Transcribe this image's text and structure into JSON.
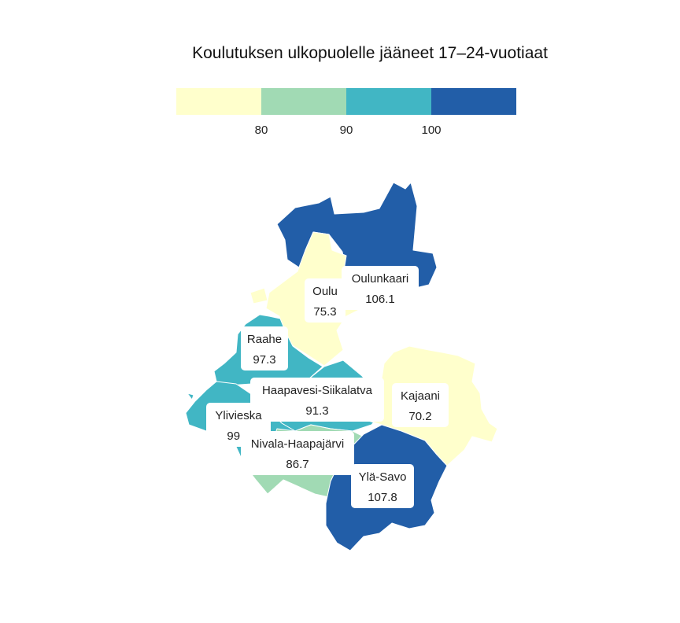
{
  "title": "Koulutuksen ulkopuolelle jääneet 17–24-vuotiaat",
  "legend": {
    "breaks": [
      "80",
      "90",
      "100"
    ],
    "colors": [
      "#ffffcc",
      "#a1dab4",
      "#41b6c4",
      "#225ea8"
    ],
    "color_bins": [
      {
        "max": 80,
        "color": "#ffffcc"
      },
      {
        "max": 90,
        "color": "#a1dab4"
      },
      {
        "max": 100,
        "color": "#41b6c4"
      },
      {
        "max": 999,
        "color": "#225ea8"
      }
    ]
  },
  "regions": [
    {
      "name": "Oulunkaari",
      "value": "106.1"
    },
    {
      "name": "Oulu",
      "value": "75.3"
    },
    {
      "name": "Raahe",
      "value": "97.3"
    },
    {
      "name": "Haapavesi-Siikalatva",
      "value": "91.3"
    },
    {
      "name": "Kajaani",
      "value": "70.2"
    },
    {
      "name": "Ylivieska",
      "value": "99.8"
    },
    {
      "name": "Nivala-Haapajärvi",
      "value": "86.7"
    },
    {
      "name": "Ylä-Savo",
      "value": "107.8"
    }
  ]
}
